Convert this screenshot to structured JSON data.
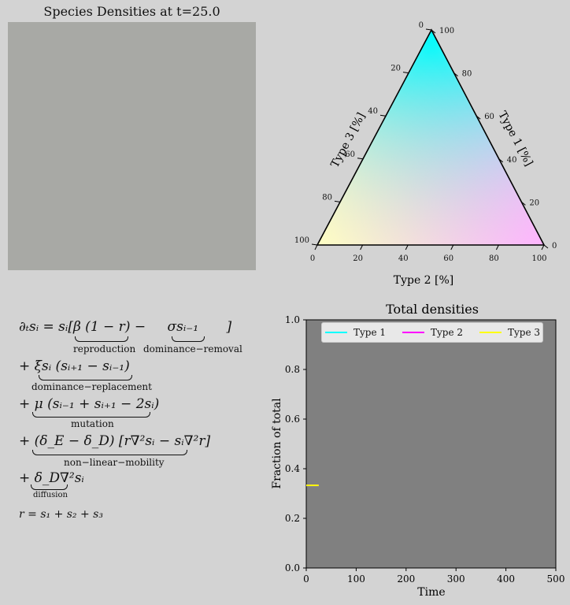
{
  "density_panel": {
    "title": "Species Densities at t=25.0",
    "fill_color": "#a8a9a5"
  },
  "ternary": {
    "type1_label": "Type 1 [%]",
    "type2_label": "Type 2 [%]",
    "type3_label": "Type 3 [%]",
    "ticks": [
      "0",
      "20",
      "40",
      "60",
      "80",
      "100"
    ],
    "vertex_colors": {
      "top": "#00ffff",
      "bottom_left": "#ffff00",
      "bottom_right": "#ff00ff"
    }
  },
  "equations": {
    "line1": "∂ₜsᵢ = sᵢ[β (1 − r) −",
    "line1_sigma": "σsᵢ₋₁",
    "line1_close": "]",
    "line1_sub_a": "reproduction",
    "line1_sub_b": "dominance−removal",
    "line2": "+  ξsᵢ (sᵢ₊₁ − sᵢ₋₁)",
    "line2_sub": "dominance−replacement",
    "line3": "+ μ (sᵢ₋₁ + sᵢ₊₁ − 2sᵢ)",
    "line3_sub": "mutation",
    "line4": "+ (δ_E − δ_D) [r∇²sᵢ − sᵢ∇²r]",
    "line4_sub": "non−linear−mobility",
    "line5": "+ δ_D∇²sᵢ",
    "line5_sub": "diffusion",
    "line6": "r = s₁ + s₂ + s₃"
  },
  "chart_data": {
    "type": "line",
    "title": "Total densities",
    "xlabel": "Time",
    "ylabel": "Fraction of total",
    "xlim": [
      0,
      500
    ],
    "ylim": [
      0,
      1.0
    ],
    "x_ticks": [
      "0",
      "100",
      "200",
      "300",
      "400",
      "500"
    ],
    "y_ticks": [
      "0.0",
      "0.2",
      "0.4",
      "0.6",
      "0.8",
      "1.0"
    ],
    "grid": false,
    "legend_position": "top",
    "plot_background": "#808080",
    "series": [
      {
        "name": "Type 1",
        "color": "#00ffff",
        "x": [
          0,
          25
        ],
        "y": [
          0.333,
          0.333
        ]
      },
      {
        "name": "Type 2",
        "color": "#ff00ff",
        "x": [
          0,
          25
        ],
        "y": [
          0.333,
          0.333
        ]
      },
      {
        "name": "Type 3",
        "color": "#ffff00",
        "x": [
          0,
          25
        ],
        "y": [
          0.333,
          0.333
        ]
      }
    ]
  }
}
